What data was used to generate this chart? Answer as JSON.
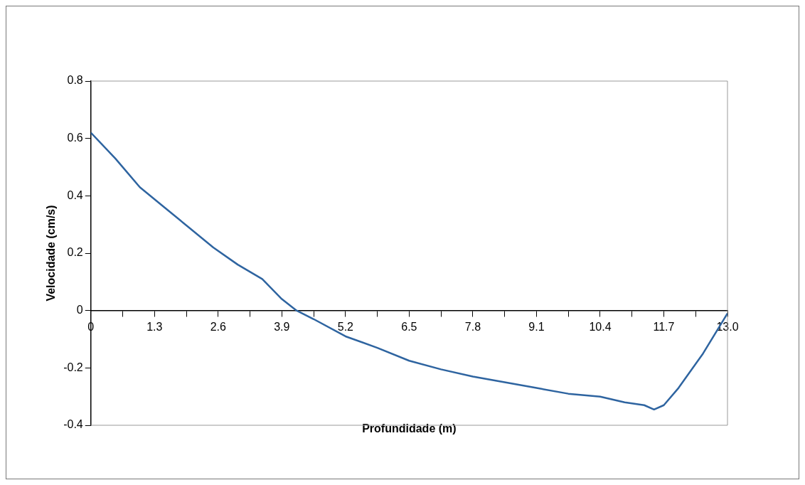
{
  "chart_data": {
    "type": "line",
    "xlabel": "Profundidade (m)",
    "ylabel": "Velocidade (cm/s)",
    "x": [
      0,
      0.5,
      1.0,
      1.5,
      2.0,
      2.5,
      3.0,
      3.5,
      3.9,
      4.2,
      4.55,
      5.2,
      5.85,
      6.5,
      7.15,
      7.8,
      8.45,
      9.1,
      9.75,
      10.4,
      10.9,
      11.3,
      11.5,
      11.7,
      12.0,
      12.5,
      13.0
    ],
    "series": [
      {
        "color": "#2e64a0",
        "values": [
          0.62,
          0.53,
          0.43,
          0.36,
          0.29,
          0.22,
          0.16,
          0.11,
          0.04,
          0.0,
          -0.03,
          -0.09,
          -0.13,
          -0.175,
          -0.205,
          -0.23,
          -0.25,
          -0.27,
          -0.29,
          -0.3,
          -0.32,
          -0.33,
          -0.345,
          -0.33,
          -0.27,
          -0.15,
          -0.01
        ]
      }
    ],
    "xlim": [
      0,
      13
    ],
    "xticks": [
      0,
      {
        "value": 0.65,
        "label": null
      },
      {
        "value": 1.3,
        "label": "1.3"
      },
      {
        "value": 1.95,
        "label": null
      },
      {
        "value": 2.6,
        "label": "2.6"
      },
      {
        "value": 3.25,
        "label": null
      },
      {
        "value": 3.9,
        "label": "3.9"
      },
      {
        "value": 4.55,
        "label": null
      },
      {
        "value": 5.2,
        "label": "5.2"
      },
      {
        "value": 5.85,
        "label": null
      },
      {
        "value": 6.5,
        "label": "6.5"
      },
      {
        "value": 7.15,
        "label": null
      },
      {
        "value": 7.8,
        "label": "7.8"
      },
      {
        "value": 8.45,
        "label": null
      },
      {
        "value": 9.1,
        "label": "9.1"
      },
      {
        "value": 9.75,
        "label": null
      },
      {
        "value": 10.4,
        "label": "10.4"
      },
      {
        "value": 11.05,
        "label": null
      },
      {
        "value": 11.7,
        "label": "11.7"
      },
      {
        "value": 12.35,
        "label": null
      },
      {
        "value": 13,
        "label": "13.0"
      }
    ],
    "ylim": [
      -0.4,
      0.8
    ],
    "yticks": [
      -0.4,
      -0.2,
      0,
      0.2,
      0.4,
      0.6,
      0.8
    ],
    "grid": false,
    "legend": false,
    "marker": "none",
    "line_style": "solid"
  }
}
